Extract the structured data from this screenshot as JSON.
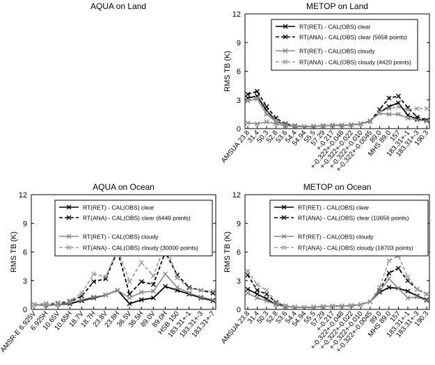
{
  "chart_data": [
    {
      "type": "line",
      "title": "AQUA on Land",
      "empty": true,
      "categories": [],
      "series": []
    },
    {
      "type": "line",
      "title": "METOP on Land",
      "ylabel": "RMS TB (K)",
      "ylim": [
        0,
        12
      ],
      "yticks": [
        "0",
        "3",
        "6",
        "9",
        "12"
      ],
      "grid": false,
      "legend_placement": "top-right",
      "categories": [
        "AMSUA 23.8",
        "31.4",
        "50.3",
        "52.8",
        "53.6",
        "54.4",
        "54.94",
        "55.5",
        "57.29",
        "+-0.217",
        "+-0.322+-0.048",
        "+-0.322+-0.022",
        "+-0.322+-0.010",
        "+-0.322+-0.0045",
        "89.0",
        "MHS 89.0",
        "157",
        "183.31+-1",
        "183.31+-3",
        "190.3"
      ],
      "series": [
        {
          "name": "RT(RET) - CAL(OBS) clear",
          "color": "#000000",
          "dashed": false,
          "values": [
            3.2,
            3.4,
            1.9,
            0.8,
            0.4,
            0.25,
            0.2,
            0.25,
            0.3,
            0.35,
            0.35,
            0.4,
            0.5,
            0.8,
            1.7,
            2.3,
            2.7,
            1.4,
            1.0,
            0.8
          ]
        },
        {
          "name": "RT(ANA) - CAL(OBS) clear (5658 points)",
          "color": "#000000",
          "dashed": true,
          "values": [
            3.6,
            3.9,
            2.3,
            1.1,
            0.5,
            0.3,
            0.2,
            0.25,
            0.3,
            0.35,
            0.35,
            0.4,
            0.5,
            0.8,
            2.0,
            3.2,
            3.4,
            2.2,
            1.2,
            0.9
          ]
        },
        {
          "name": "RT(RET) - CAL(OBS) cloudy",
          "color": "#888888",
          "dashed": false,
          "values": [
            2.9,
            3.1,
            1.5,
            0.7,
            0.4,
            0.25,
            0.2,
            0.25,
            0.3,
            0.35,
            0.35,
            0.4,
            0.5,
            0.8,
            1.6,
            1.5,
            1.5,
            1.1,
            0.9,
            0.8
          ]
        },
        {
          "name": "RT(ANA) - CAL(OBS) cloudy (4420 points)",
          "color": "#999999",
          "dashed": true,
          "values": [
            3.0,
            3.2,
            1.6,
            0.8,
            0.4,
            0.25,
            0.2,
            0.25,
            0.3,
            0.35,
            0.35,
            0.4,
            0.5,
            0.8,
            1.7,
            2.1,
            2.3,
            2.0,
            2.1,
            2.1
          ]
        },
        {
          "name": "",
          "color": "#888888",
          "dashed": false,
          "values": [
            0.6,
            0.5,
            0.7,
            0.5,
            0.3,
            0.25,
            0.2,
            0.25,
            0.3,
            0.35,
            0.35,
            0.4,
            0.5,
            0.7,
            null,
            null,
            null,
            null,
            null,
            null
          ]
        }
      ]
    },
    {
      "type": "line",
      "title": "AQUA on Ocean",
      "ylabel": "RMS TB (K)",
      "ylim": [
        0,
        12
      ],
      "yticks": [
        "0",
        "3",
        "6",
        "9",
        "12"
      ],
      "grid": false,
      "legend_placement": "top-right",
      "categories": [
        "AMSR-E 6.925V",
        "6.925H",
        "10.65V",
        "10.65H",
        "18.7V",
        "18.7H",
        "23.8V",
        "23.8H",
        "36.5V",
        "36.5H",
        "89.0V",
        "89.0H",
        "HSB 150",
        "183.31+-1",
        "183.31+-3",
        "183.31+-7"
      ],
      "series": [
        {
          "name": "RT(RET) - CAL(OBS) clear",
          "color": "#000000",
          "dashed": false,
          "values": [
            0.5,
            0.4,
            0.5,
            0.6,
            0.9,
            1.2,
            1.5,
            2.0,
            0.6,
            1.0,
            1.2,
            2.4,
            2.0,
            1.6,
            1.2,
            0.9
          ]
        },
        {
          "name": "RT(ANA) - CAL(OBS) clear (6449 points)",
          "color": "#000000",
          "dashed": true,
          "values": [
            0.5,
            0.6,
            0.6,
            0.8,
            1.4,
            2.9,
            3.2,
            6.1,
            1.6,
            2.9,
            2.6,
            6.0,
            3.6,
            2.3,
            2.0,
            1.7
          ]
        },
        {
          "name": "RT(RET) - CAL(OBS) cloudy",
          "color": "#888888",
          "dashed": false,
          "values": [
            0.5,
            0.4,
            0.5,
            0.7,
            1.0,
            1.3,
            1.5,
            2.0,
            1.2,
            1.8,
            1.9,
            3.7,
            2.3,
            1.7,
            1.3,
            1.0
          ]
        },
        {
          "name": "RT(ANA) - CAL(OBS) cloudy (30000 points)",
          "color": "#999999",
          "dashed": true,
          "values": [
            0.5,
            0.6,
            0.7,
            0.9,
            1.7,
            3.7,
            3.4,
            6.3,
            2.9,
            4.9,
            3.5,
            6.9,
            3.3,
            2.2,
            2.0,
            1.9
          ]
        }
      ]
    },
    {
      "type": "line",
      "title": "METOP on Ocean",
      "ylabel": "RMS TB (K)",
      "ylim": [
        0,
        12
      ],
      "yticks": [
        "0",
        "3",
        "6",
        "9",
        "12"
      ],
      "grid": false,
      "legend_placement": "top-right",
      "categories": [
        "AMSUA 23.8",
        "31.4",
        "50.3",
        "52.8",
        "53.6",
        "54.4",
        "54.94",
        "55.5",
        "57.29",
        "+-0.217",
        "+-0.322+-0.048",
        "+-0.322+-0.022",
        "+-0.322+-0.010",
        "+-0.322+-0.0045",
        "89.0",
        "MHS 89.0",
        "157",
        "183.31+-1",
        "183.31+-3",
        "190.3"
      ],
      "series": [
        {
          "name": "RT(RET) - CAL(OBS) clear",
          "color": "#000000",
          "dashed": false,
          "values": [
            2.1,
            1.6,
            1.1,
            0.5,
            0.3,
            0.25,
            0.2,
            0.25,
            0.3,
            0.35,
            0.35,
            0.4,
            0.5,
            0.8,
            1.8,
            2.3,
            2.2,
            1.9,
            1.4,
            1.0
          ]
        },
        {
          "name": "RT(ANA) - CAL(OBS) clear (10656 points)",
          "color": "#000000",
          "dashed": true,
          "values": [
            3.6,
            2.0,
            1.6,
            0.7,
            0.3,
            0.25,
            0.2,
            0.25,
            0.3,
            0.35,
            0.35,
            0.4,
            0.5,
            0.8,
            2.0,
            3.8,
            4.3,
            3.0,
            2.1,
            1.6
          ]
        },
        {
          "name": "RT(RET) - CAL(OBS) cloudy",
          "color": "#888888",
          "dashed": false,
          "values": [
            1.7,
            1.2,
            0.9,
            0.5,
            0.3,
            0.25,
            0.2,
            0.25,
            0.3,
            0.35,
            0.35,
            0.4,
            0.5,
            0.8,
            1.9,
            3.2,
            2.2,
            1.2,
            1.3,
            0.9
          ]
        },
        {
          "name": "RT(ANA) - CAL(OBS) cloudy (18703 points)",
          "color": "#999999",
          "dashed": true,
          "values": [
            4.0,
            2.6,
            2.0,
            0.8,
            0.4,
            0.25,
            0.2,
            0.25,
            0.3,
            0.35,
            0.35,
            0.4,
            0.5,
            0.8,
            2.3,
            5.1,
            5.6,
            3.4,
            2.1,
            1.6
          ]
        }
      ]
    }
  ]
}
